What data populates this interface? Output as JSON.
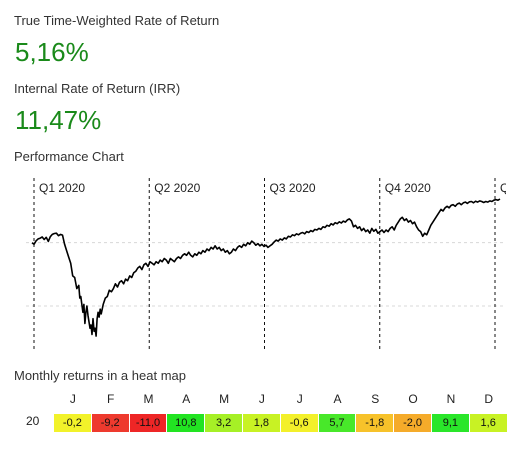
{
  "ttwror": {
    "label": "True Time-Weighted Rate of Return",
    "value": "5,16%"
  },
  "irr": {
    "label": "Internal Rate of Return (IRR)",
    "value": "11,47%"
  },
  "performance_chart": {
    "label": "Performance Chart",
    "quarters": [
      "Q1 2020",
      "Q2 2020",
      "Q3 2020",
      "Q4 2020",
      "Q"
    ],
    "line_color": "#000000"
  },
  "heatmap": {
    "label": "Monthly returns in a heat map",
    "months": [
      "J",
      "F",
      "M",
      "A",
      "M",
      "J",
      "J",
      "A",
      "S",
      "O",
      "N",
      "D"
    ],
    "year": "20",
    "values": [
      "-0,2",
      "-9,2",
      "-11,0",
      "10,8",
      "3,2",
      "1,8",
      "-0,6",
      "5,7",
      "-1,8",
      "-2,0",
      "9,1",
      "1,6"
    ],
    "colors": [
      "#f2f22a",
      "#ee3a2e",
      "#ee2626",
      "#22e422",
      "#a6f026",
      "#c8f224",
      "#f3f02a",
      "#48e82a",
      "#f7c22a",
      "#f5ab2a",
      "#2ae62a",
      "#c8f224"
    ]
  },
  "chart_data": {
    "type": "line",
    "title": "Performance Chart",
    "xlabel": "",
    "ylabel": "",
    "x_ticks": [
      "Q1 2020",
      "Q2 2020",
      "Q3 2020",
      "Q4 2020",
      "Q"
    ],
    "grid": true,
    "series": [
      {
        "values": [
          [
            0,
            0.0
          ],
          [
            2,
            -0.5
          ],
          [
            4,
            0.6
          ],
          [
            6,
            1.2
          ],
          [
            8,
            1.4
          ],
          [
            10,
            1.8
          ],
          [
            12,
            1.0
          ],
          [
            14,
            1.7
          ],
          [
            16,
            0.4
          ],
          [
            18,
            1.9
          ],
          [
            20,
            2.6
          ],
          [
            22,
            2.9
          ],
          [
            24,
            3.0
          ],
          [
            26,
            2.2
          ],
          [
            28,
            2.6
          ],
          [
            30,
            2.4
          ],
          [
            32,
            -0.5
          ],
          [
            34,
            -2.5
          ],
          [
            36,
            -4.5
          ],
          [
            38,
            -6.5
          ],
          [
            40,
            -10.5
          ],
          [
            42,
            -11.0
          ],
          [
            44,
            -14.5
          ],
          [
            46,
            -13.5
          ],
          [
            47,
            -17.5
          ],
          [
            48,
            -17.0
          ],
          [
            50,
            -22.0
          ],
          [
            51,
            -19.5
          ],
          [
            52,
            -25.5
          ],
          [
            53,
            -22.0
          ],
          [
            54,
            -20.0
          ],
          [
            55,
            -23.0
          ],
          [
            57,
            -27.0
          ],
          [
            58,
            -26.0
          ],
          [
            59,
            -29.0
          ],
          [
            60,
            -24.0
          ],
          [
            61,
            -28.0
          ],
          [
            62,
            -27.0
          ],
          [
            63,
            -29.5
          ],
          [
            64,
            -24.0
          ],
          [
            65,
            -22.0
          ],
          [
            66,
            -23.5
          ],
          [
            67,
            -21.0
          ],
          [
            68,
            -22.5
          ],
          [
            70,
            -19.5
          ],
          [
            72,
            -17.5
          ],
          [
            74,
            -17.0
          ],
          [
            76,
            -15.0
          ],
          [
            78,
            -15.5
          ],
          [
            80,
            -14.5
          ],
          [
            82,
            -13.0
          ],
          [
            84,
            -14.0
          ],
          [
            86,
            -12.5
          ],
          [
            88,
            -12.0
          ],
          [
            90,
            -13.0
          ],
          [
            92,
            -11.5
          ],
          [
            94,
            -12.0
          ],
          [
            96,
            -10.5
          ],
          [
            98,
            -11.0
          ],
          [
            100,
            -9.5
          ],
          [
            102,
            -9.0
          ],
          [
            104,
            -8.0
          ],
          [
            106,
            -7.5
          ],
          [
            108,
            -8.5
          ],
          [
            110,
            -7.0
          ],
          [
            112,
            -6.5
          ],
          [
            114,
            -7.5
          ],
          [
            116,
            -6.0
          ],
          [
            118,
            -6.5
          ],
          [
            120,
            -7.0
          ],
          [
            122,
            -6.0
          ],
          [
            124,
            -6.5
          ],
          [
            126,
            -5.5
          ],
          [
            128,
            -6.0
          ],
          [
            130,
            -5.0
          ],
          [
            132,
            -5.5
          ],
          [
            134,
            -6.5
          ],
          [
            136,
            -5.0
          ],
          [
            138,
            -5.5
          ],
          [
            140,
            -6.0
          ],
          [
            142,
            -5.0
          ],
          [
            144,
            -4.5
          ],
          [
            146,
            -5.0
          ],
          [
            148,
            -4.0
          ],
          [
            150,
            -3.5
          ],
          [
            152,
            -4.0
          ],
          [
            154,
            -3.0
          ],
          [
            156,
            -4.0
          ],
          [
            158,
            -4.5
          ],
          [
            160,
            -3.5
          ],
          [
            162,
            -4.0
          ],
          [
            164,
            -3.0
          ],
          [
            166,
            -3.5
          ],
          [
            168,
            -2.5
          ],
          [
            170,
            -3.0
          ],
          [
            172,
            -2.0
          ],
          [
            174,
            -2.5
          ],
          [
            176,
            -1.5
          ],
          [
            178,
            -2.0
          ],
          [
            180,
            -1.0
          ],
          [
            182,
            -2.0
          ],
          [
            184,
            -1.5
          ],
          [
            186,
            -2.5
          ],
          [
            188,
            -2.0
          ],
          [
            190,
            -3.0
          ],
          [
            192,
            -2.5
          ],
          [
            194,
            -3.5
          ],
          [
            196,
            -3.0
          ],
          [
            198,
            -2.0
          ],
          [
            200,
            -2.5
          ],
          [
            202,
            -1.5
          ],
          [
            204,
            -1.0
          ],
          [
            206,
            -1.5
          ],
          [
            208,
            -0.5
          ],
          [
            210,
            -1.0
          ],
          [
            212,
            0.0
          ],
          [
            214,
            -0.5
          ],
          [
            216,
            0.5
          ],
          [
            218,
            0.0
          ],
          [
            220,
            -0.8
          ],
          [
            222,
            -0.3
          ],
          [
            224,
            -1.0
          ],
          [
            226,
            -0.5
          ],
          [
            228,
            -1.2
          ],
          [
            230,
            -0.8
          ],
          [
            232,
            -1.5
          ],
          [
            234,
            -1.0
          ],
          [
            236,
            -0.5
          ],
          [
            238,
            0.2
          ],
          [
            240,
            0.8
          ],
          [
            242,
            0.5
          ],
          [
            244,
            1.2
          ],
          [
            246,
            0.8
          ],
          [
            248,
            1.5
          ],
          [
            250,
            1.2
          ],
          [
            252,
            2.0
          ],
          [
            254,
            1.8
          ],
          [
            256,
            2.5
          ],
          [
            258,
            2.2
          ],
          [
            260,
            2.8
          ],
          [
            262,
            2.5
          ],
          [
            264,
            3.0
          ],
          [
            266,
            3.2
          ],
          [
            268,
            2.8
          ],
          [
            270,
            3.5
          ],
          [
            272,
            3.2
          ],
          [
            274,
            3.8
          ],
          [
            276,
            3.5
          ],
          [
            278,
            4.2
          ],
          [
            280,
            4.0
          ],
          [
            282,
            4.5
          ],
          [
            284,
            4.2
          ],
          [
            286,
            5.0
          ],
          [
            288,
            4.8
          ],
          [
            290,
            5.5
          ],
          [
            292,
            5.2
          ],
          [
            294,
            6.0
          ],
          [
            296,
            5.6
          ],
          [
            298,
            6.3
          ],
          [
            300,
            6.0
          ],
          [
            302,
            6.6
          ],
          [
            304,
            6.2
          ],
          [
            306,
            6.8
          ],
          [
            308,
            6.5
          ],
          [
            310,
            7.2
          ],
          [
            312,
            7.5
          ],
          [
            314,
            6.8
          ],
          [
            316,
            5.0
          ],
          [
            318,
            5.5
          ],
          [
            320,
            4.5
          ],
          [
            322,
            5.0
          ],
          [
            324,
            3.8
          ],
          [
            326,
            4.5
          ],
          [
            328,
            3.5
          ],
          [
            330,
            4.0
          ],
          [
            332,
            3.0
          ],
          [
            334,
            4.5
          ],
          [
            336,
            3.6
          ],
          [
            338,
            4.2
          ],
          [
            340,
            3.0
          ],
          [
            342,
            3.5
          ],
          [
            344,
            4.0
          ],
          [
            346,
            3.2
          ],
          [
            348,
            4.0
          ],
          [
            350,
            3.5
          ],
          [
            352,
            4.5
          ],
          [
            354,
            5.0
          ],
          [
            356,
            4.0
          ],
          [
            358,
            5.5
          ],
          [
            360,
            6.5
          ],
          [
            362,
            7.5
          ],
          [
            364,
            8.0
          ],
          [
            366,
            7.0
          ],
          [
            368,
            7.5
          ],
          [
            370,
            6.5
          ],
          [
            372,
            7.0
          ],
          [
            374,
            6.0
          ],
          [
            376,
            6.5
          ],
          [
            378,
            5.0
          ],
          [
            380,
            4.0
          ],
          [
            382,
            3.5
          ],
          [
            384,
            2.0
          ],
          [
            386,
            3.0
          ],
          [
            388,
            2.5
          ],
          [
            390,
            4.0
          ],
          [
            392,
            5.5
          ],
          [
            394,
            6.5
          ],
          [
            396,
            7.5
          ],
          [
            398,
            8.5
          ],
          [
            400,
            9.5
          ],
          [
            402,
            10.5
          ],
          [
            404,
            10.0
          ],
          [
            406,
            11.0
          ],
          [
            408,
            11.5
          ],
          [
            410,
            11.0
          ],
          [
            412,
            11.8
          ],
          [
            414,
            12.0
          ],
          [
            416,
            11.5
          ],
          [
            418,
            12.2
          ],
          [
            420,
            12.5
          ],
          [
            422,
            12.0
          ],
          [
            424,
            12.6
          ],
          [
            426,
            12.8
          ],
          [
            428,
            12.4
          ],
          [
            430,
            12.9
          ],
          [
            432,
            13.0
          ],
          [
            434,
            12.6
          ],
          [
            436,
            13.1
          ],
          [
            438,
            12.8
          ],
          [
            440,
            13.2
          ],
          [
            442,
            13.0
          ],
          [
            444,
            12.7
          ],
          [
            446,
            13.0
          ],
          [
            448,
            12.8
          ],
          [
            450,
            13.2
          ],
          [
            452,
            13.0
          ],
          [
            454,
            13.4
          ],
          [
            456,
            13.6
          ],
          [
            458,
            13.4
          ],
          [
            460,
            13.8
          ]
        ]
      }
    ],
    "ylim": [
      -32,
      16
    ],
    "gridlines_y": [
      0,
      -20
    ]
  }
}
